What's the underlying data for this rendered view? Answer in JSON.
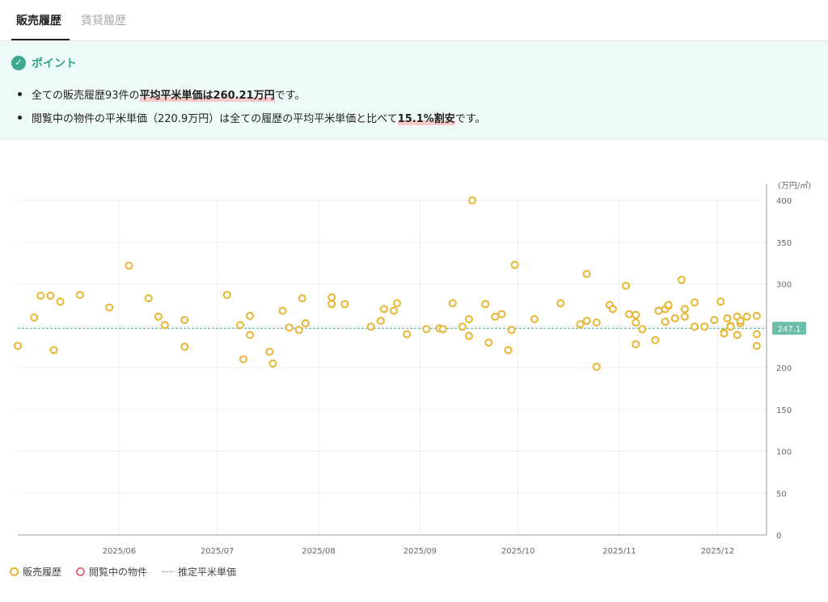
{
  "tabs": {
    "active": "販売履歴",
    "inactive": "賃貸履歴"
  },
  "point": {
    "title": "ポイント",
    "line1": {
      "a": "全ての販売履歴93件の",
      "b": "平均平米単価は260.21万円",
      "c": "です。"
    },
    "line2": {
      "a": "閲覧中の物件の平米単価（220.9万円）は全ての履歴の平均平米単価と比べて",
      "b": "15.1%割安",
      "c": "です。"
    }
  },
  "legend": {
    "sales": "販売履歴",
    "viewing": "閲覧中の物件",
    "estimate": "推定平米単価"
  },
  "colors": {
    "sales": "#e8b530",
    "viewing": "#e06c7a",
    "estimate": "#3daa90"
  },
  "chart_data": {
    "type": "scatter",
    "unit": "(万円/㎡)",
    "ylim": [
      0,
      400
    ],
    "yticks": [
      0,
      50,
      100,
      150,
      200,
      250,
      300,
      350,
      400
    ],
    "xlim": [
      "2025-05-01",
      "2025-12-16"
    ],
    "xticks": [
      {
        "date": "2025-06-01",
        "label": "2025/06"
      },
      {
        "date": "2025-07-01",
        "label": "2025/07"
      },
      {
        "date": "2025-08-01",
        "label": "2025/08"
      },
      {
        "date": "2025-09-01",
        "label": "2025/09"
      },
      {
        "date": "2025-10-01",
        "label": "2025/10"
      },
      {
        "date": "2025-11-01",
        "label": "2025/11"
      },
      {
        "date": "2025-12-01",
        "label": "2025/12"
      }
    ],
    "estimate_line": {
      "value": 247.1,
      "label": "247.1"
    },
    "grid": true,
    "series": [
      {
        "name": "販売履歴",
        "points": [
          [
            "2025-05-01",
            226
          ],
          [
            "2025-05-06",
            260
          ],
          [
            "2025-05-08",
            286
          ],
          [
            "2025-05-11",
            286
          ],
          [
            "2025-05-12",
            221
          ],
          [
            "2025-05-14",
            279
          ],
          [
            "2025-05-20",
            287
          ],
          [
            "2025-05-29",
            272
          ],
          [
            "2025-06-04",
            322
          ],
          [
            "2025-06-10",
            283
          ],
          [
            "2025-06-13",
            261
          ],
          [
            "2025-06-15",
            251
          ],
          [
            "2025-06-21",
            225
          ],
          [
            "2025-06-21",
            257
          ],
          [
            "2025-07-04",
            287
          ],
          [
            "2025-07-08",
            251
          ],
          [
            "2025-07-09",
            210
          ],
          [
            "2025-07-11",
            239
          ],
          [
            "2025-07-11",
            262
          ],
          [
            "2025-07-17",
            219
          ],
          [
            "2025-07-18",
            205
          ],
          [
            "2025-07-21",
            268
          ],
          [
            "2025-07-23",
            248
          ],
          [
            "2025-07-26",
            245
          ],
          [
            "2025-07-27",
            283
          ],
          [
            "2025-07-28",
            253
          ],
          [
            "2025-08-05",
            284
          ],
          [
            "2025-08-05",
            276
          ],
          [
            "2025-08-09",
            276
          ],
          [
            "2025-08-17",
            249
          ],
          [
            "2025-08-20",
            256
          ],
          [
            "2025-08-21",
            270
          ],
          [
            "2025-08-24",
            268
          ],
          [
            "2025-08-25",
            277
          ],
          [
            "2025-08-28",
            240
          ],
          [
            "2025-09-03",
            246
          ],
          [
            "2025-09-07",
            247
          ],
          [
            "2025-09-08",
            246
          ],
          [
            "2025-09-11",
            277
          ],
          [
            "2025-09-14",
            249
          ],
          [
            "2025-09-16",
            258
          ],
          [
            "2025-09-16",
            238
          ],
          [
            "2025-09-17",
            400
          ],
          [
            "2025-09-21",
            276
          ],
          [
            "2025-09-22",
            230
          ],
          [
            "2025-09-24",
            261
          ],
          [
            "2025-09-26",
            264
          ],
          [
            "2025-09-28",
            221
          ],
          [
            "2025-09-29",
            245
          ],
          [
            "2025-09-30",
            323
          ],
          [
            "2025-10-06",
            258
          ],
          [
            "2025-10-14",
            277
          ],
          [
            "2025-10-20",
            252
          ],
          [
            "2025-10-22",
            312
          ],
          [
            "2025-10-22",
            256
          ],
          [
            "2025-10-25",
            201
          ],
          [
            "2025-10-25",
            254
          ],
          [
            "2025-10-29",
            275
          ],
          [
            "2025-10-30",
            270
          ],
          [
            "2025-11-03",
            298
          ],
          [
            "2025-11-04",
            264
          ],
          [
            "2025-11-06",
            263
          ],
          [
            "2025-11-06",
            254
          ],
          [
            "2025-11-06",
            228
          ],
          [
            "2025-11-08",
            246
          ],
          [
            "2025-11-12",
            233
          ],
          [
            "2025-11-13",
            268
          ],
          [
            "2025-11-15",
            270
          ],
          [
            "2025-11-16",
            274
          ],
          [
            "2025-11-16",
            275
          ],
          [
            "2025-11-15",
            255
          ],
          [
            "2025-11-18",
            259
          ],
          [
            "2025-11-20",
            305
          ],
          [
            "2025-11-21",
            270
          ],
          [
            "2025-11-21",
            261
          ],
          [
            "2025-11-24",
            278
          ],
          [
            "2025-11-24",
            249
          ],
          [
            "2025-11-27",
            249
          ],
          [
            "2025-11-30",
            257
          ],
          [
            "2025-12-02",
            279
          ],
          [
            "2025-12-03",
            242
          ],
          [
            "2025-12-03",
            241
          ],
          [
            "2025-12-04",
            259
          ],
          [
            "2025-12-05",
            250
          ],
          [
            "2025-12-05",
            249
          ],
          [
            "2025-12-07",
            239
          ],
          [
            "2025-12-07",
            261
          ],
          [
            "2025-12-08",
            253
          ],
          [
            "2025-12-08",
            256
          ],
          [
            "2025-12-10",
            261
          ],
          [
            "2025-12-13",
            262
          ],
          [
            "2025-12-13",
            240
          ],
          [
            "2025-12-13",
            226
          ]
        ]
      }
    ]
  }
}
